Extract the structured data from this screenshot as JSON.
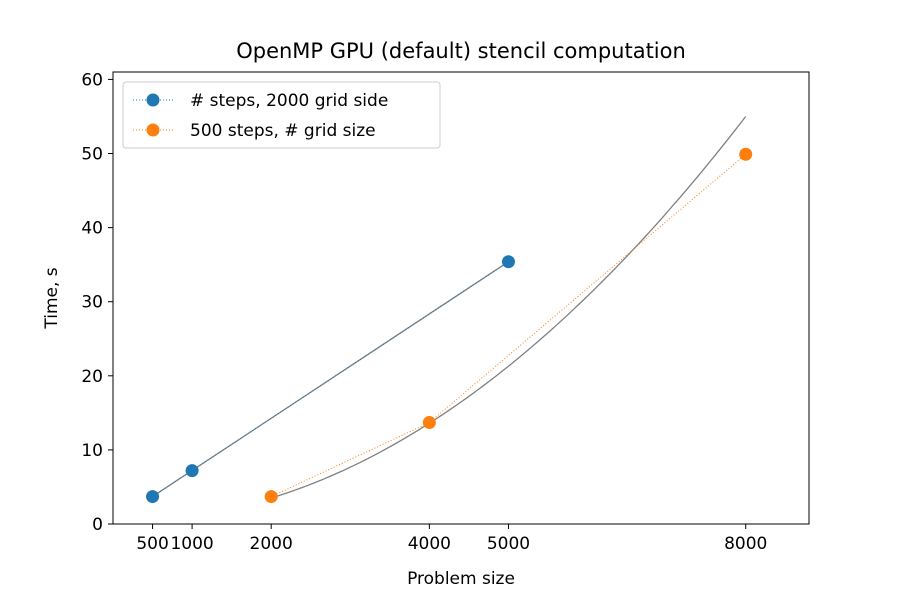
{
  "chart_data": {
    "type": "line",
    "title": "OpenMP GPU (default) stencil computation",
    "xlabel": "Problem size",
    "ylabel": "Time, s",
    "xlim": [
      0,
      8800
    ],
    "ylim": [
      0,
      61
    ],
    "xticks": [
      500,
      1000,
      2000,
      4000,
      5000,
      8000
    ],
    "xtick_labels": [
      "500",
      "1000",
      "2000",
      "4000",
      "5000",
      "8000"
    ],
    "yticks": [
      0,
      10,
      20,
      30,
      40,
      50,
      60
    ],
    "ytick_labels": [
      "0",
      "10",
      "20",
      "30",
      "40",
      "50",
      "60"
    ],
    "grid": false,
    "legend_position": "top-left",
    "series": [
      {
        "name": "# steps, 2000 grid side",
        "color": "#1f77b4",
        "line_style": "dotted",
        "marker": "circle",
        "x": [
          500,
          1000,
          5000
        ],
        "y": [
          3.7,
          7.2,
          35.4
        ]
      },
      {
        "name": "500 steps, # grid size",
        "color": "#ff7f0e",
        "line_style": "dotted",
        "marker": "circle",
        "x": [
          2000,
          4000,
          8000
        ],
        "y": [
          3.7,
          13.7,
          49.9
        ]
      }
    ],
    "fits": [
      {
        "kind": "linear",
        "color": "#808080",
        "x_range": [
          500,
          5000
        ],
        "points": [
          [
            500,
            3.7
          ],
          [
            5000,
            35.4
          ]
        ]
      },
      {
        "kind": "quadratic",
        "color": "#808080",
        "x_range": [
          2000,
          8000
        ],
        "points": [
          [
            2000,
            3.5
          ],
          [
            4000,
            13.6
          ],
          [
            8000,
            55.0
          ]
        ]
      }
    ]
  }
}
